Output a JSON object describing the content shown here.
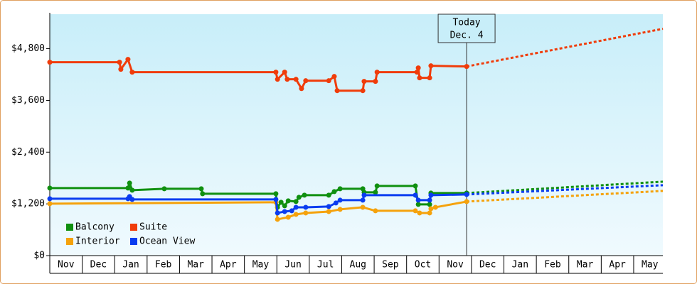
{
  "chart_data": {
    "type": "line",
    "xlim": [
      0,
      18.9
    ],
    "ylim": [
      0,
      5600
    ],
    "yticks": [
      {
        "value": 0,
        "label": "$0"
      },
      {
        "value": 1200,
        "label": "$1,200"
      },
      {
        "value": 2400,
        "label": "$2,400"
      },
      {
        "value": 3600,
        "label": "$3,600"
      },
      {
        "value": 4800,
        "label": "$4,800"
      }
    ],
    "xticks": [
      {
        "value": 0.5,
        "label": "Nov"
      },
      {
        "value": 1.5,
        "label": "Dec"
      },
      {
        "value": 2.5,
        "label": "Jan"
      },
      {
        "value": 3.5,
        "label": "Feb"
      },
      {
        "value": 4.5,
        "label": "Mar"
      },
      {
        "value": 5.5,
        "label": "Apr"
      },
      {
        "value": 6.5,
        "label": "May"
      },
      {
        "value": 7.5,
        "label": "Jun"
      },
      {
        "value": 8.5,
        "label": "Jul"
      },
      {
        "value": 9.5,
        "label": "Aug"
      },
      {
        "value": 10.5,
        "label": "Sep"
      },
      {
        "value": 11.5,
        "label": "Oct"
      },
      {
        "value": 12.5,
        "label": "Nov"
      },
      {
        "value": 13.5,
        "label": "Dec"
      },
      {
        "value": 14.5,
        "label": "Jan"
      },
      {
        "value": 15.5,
        "label": "Feb"
      },
      {
        "value": 16.5,
        "label": "Mar"
      },
      {
        "value": 17.5,
        "label": "Apr"
      },
      {
        "value": 18.5,
        "label": "May"
      }
    ],
    "legend": "lower-left",
    "annotation": {
      "x": 12.85,
      "lines": [
        "Today",
        "Dec. 4"
      ]
    },
    "series": [
      {
        "name": "Balcony",
        "color": "#109010",
        "x": [
          0,
          2.41,
          2.46,
          2.54,
          3.53,
          4.67,
          4.71,
          6.97,
          7.02,
          7.13,
          7.24,
          7.35,
          7.59,
          7.68,
          7.85,
          8.6,
          8.77,
          8.95,
          9.65,
          9.69,
          10.04,
          10.09,
          11.27,
          11.36,
          11.71,
          11.75,
          12.85
        ],
        "values": [
          1567,
          1567,
          1682,
          1517,
          1550,
          1550,
          1435,
          1435,
          1121,
          1237,
          1154,
          1270,
          1253,
          1352,
          1402,
          1402,
          1484,
          1550,
          1550,
          1468,
          1468,
          1616,
          1616,
          1187,
          1187,
          1451,
          1451
        ],
        "forecast": {
          "x": [
            12.85,
            18.9
          ],
          "values": [
            1451,
            1715
          ]
        }
      },
      {
        "name": "Suite",
        "color": "#f03c0a",
        "x": [
          0,
          2.15,
          2.19,
          2.41,
          2.54,
          6.97,
          7.02,
          7.24,
          7.32,
          7.59,
          7.76,
          7.89,
          8.6,
          8.77,
          8.86,
          9.65,
          9.69,
          10.04,
          10.09,
          11.32,
          11.36,
          11.4,
          11.71,
          11.75,
          12.85
        ],
        "values": [
          4486,
          4486,
          4321,
          4552,
          4255,
          4255,
          4090,
          4255,
          4090,
          4090,
          3875,
          4057,
          4057,
          4156,
          3826,
          3826,
          4041,
          4041,
          4255,
          4255,
          4354,
          4123,
          4123,
          4403,
          4387
        ],
        "forecast": {
          "x": [
            12.85,
            18.9
          ],
          "values": [
            4387,
            5261
          ]
        }
      },
      {
        "name": "Interior",
        "color": "#f5a20c",
        "x": [
          0,
          6.97,
          7.02,
          7.35,
          7.59,
          7.89,
          8.6,
          8.95,
          9.65,
          10.04,
          11.27,
          11.4,
          11.71,
          11.75,
          11.89,
          12.85
        ],
        "values": [
          1204,
          1237,
          841,
          890,
          956,
          989,
          1022,
          1072,
          1121,
          1039,
          1039,
          989,
          989,
          1088,
          1121,
          1253
        ],
        "forecast": {
          "x": [
            12.85,
            18.9
          ],
          "values": [
            1253,
            1501
          ]
        }
      },
      {
        "name": "Ocean View",
        "color": "#0a3cf0",
        "x": [
          0,
          2.41,
          2.46,
          2.54,
          6.97,
          7.02,
          7.24,
          7.46,
          7.59,
          7.89,
          8.6,
          8.82,
          8.95,
          9.65,
          9.69,
          11.27,
          11.36,
          11.71,
          11.75,
          12.85
        ],
        "values": [
          1319,
          1319,
          1369,
          1303,
          1303,
          989,
          1022,
          1039,
          1121,
          1121,
          1138,
          1220,
          1286,
          1286,
          1402,
          1402,
          1286,
          1286,
          1402,
          1418
        ],
        "forecast": {
          "x": [
            12.85,
            18.9
          ],
          "values": [
            1418,
            1633
          ]
        }
      }
    ]
  }
}
